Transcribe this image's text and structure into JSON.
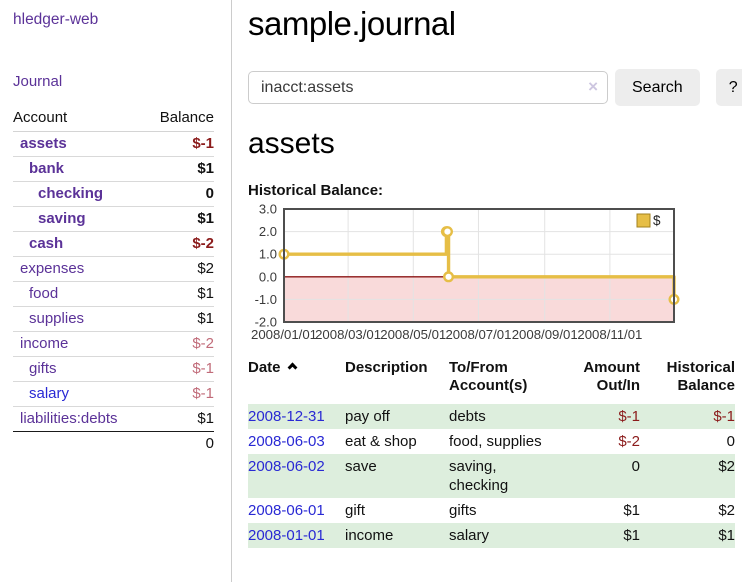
{
  "app": {
    "title": "hledger-web",
    "nav_journal": "Journal"
  },
  "sidebar": {
    "accounts_header": {
      "account": "Account",
      "balance": "Balance"
    },
    "accounts": [
      {
        "name": "assets",
        "indent": 1,
        "balance": "$-1",
        "bold": true,
        "negative": "strong"
      },
      {
        "name": "bank",
        "indent": 2,
        "balance": "$1",
        "bold": true,
        "negative": "none"
      },
      {
        "name": "checking",
        "indent": 3,
        "balance": "0",
        "bold": true,
        "negative": "none"
      },
      {
        "name": "saving",
        "indent": 3,
        "balance": "$1",
        "bold": true,
        "negative": "none"
      },
      {
        "name": "cash",
        "indent": 2,
        "balance": "$-2",
        "bold": true,
        "negative": "strong"
      },
      {
        "name": "expenses",
        "indent": 1,
        "balance": "$2",
        "bold": false,
        "negative": "none"
      },
      {
        "name": "food",
        "indent": 2,
        "balance": "$1",
        "bold": false,
        "negative": "none"
      },
      {
        "name": "supplies",
        "indent": 2,
        "balance": "$1",
        "bold": false,
        "negative": "none"
      },
      {
        "name": "income",
        "indent": 1,
        "balance": "$-2",
        "bold": false,
        "negative": "soft"
      },
      {
        "name": "gifts",
        "indent": 2,
        "balance": "$-1",
        "bold": false,
        "negative": "soft"
      },
      {
        "name": "salary",
        "indent": 2,
        "balance": "$-1",
        "bold": false,
        "negative": "soft",
        "link_color": "blue"
      },
      {
        "name": "liabilities:debts",
        "indent": 1,
        "balance": "$1",
        "bold": false,
        "negative": "none"
      }
    ],
    "total": "0"
  },
  "header": {
    "title": "sample.journal"
  },
  "search": {
    "value": "inacct:assets",
    "clear_icon": "×",
    "button": "Search",
    "help_button": "?"
  },
  "account_page": {
    "heading": "assets",
    "chart_label": "Historical Balance:"
  },
  "chart_data": {
    "type": "line",
    "step": true,
    "title": "Historical Balance",
    "legend": [
      {
        "label": "$",
        "color": "#e6be46"
      }
    ],
    "legend_position": "top-right",
    "grid": true,
    "x_ticks": [
      "2008/01/01",
      "2008/03/01",
      "2008/05/01",
      "2008/07/01",
      "2008/09/01",
      "2008/11/01"
    ],
    "x_range": [
      "2008-01-01",
      "2008-12-31"
    ],
    "y_ticks": [
      3.0,
      2.0,
      1.0,
      0.0,
      -1.0,
      -2.0
    ],
    "ylim": [
      -2,
      3
    ],
    "series": [
      {
        "name": "$",
        "color": "#e6be46",
        "points": [
          [
            "2008-01-01",
            1
          ],
          [
            "2008-06-01",
            2
          ],
          [
            "2008-06-02",
            2
          ],
          [
            "2008-06-03",
            0
          ],
          [
            "2008-12-31",
            -1
          ]
        ]
      }
    ],
    "negative_region_fill": "#f9dada",
    "zero_line_color": "#8b1515"
  },
  "transactions": {
    "columns": [
      {
        "line1": "Date",
        "line2": "",
        "sortable": true
      },
      {
        "line1": "Description",
        "line2": ""
      },
      {
        "line1": "To/From",
        "line2": "Account(s)"
      },
      {
        "line1": "Amount",
        "line2": "Out/In"
      },
      {
        "line1": "Historical",
        "line2": "Balance"
      }
    ],
    "rows": [
      {
        "date": "2008-12-31",
        "description": "pay off",
        "accounts": "debts",
        "amount": "$-1",
        "amount_neg": true,
        "balance": "$-1",
        "balance_neg": true
      },
      {
        "date": "2008-06-03",
        "description": "eat & shop",
        "accounts": "food, supplies",
        "amount": "$-2",
        "amount_neg": true,
        "balance": "0",
        "balance_neg": false
      },
      {
        "date": "2008-06-02",
        "description": "save",
        "accounts": "saving, checking",
        "amount": "0",
        "amount_neg": false,
        "balance": "$2",
        "balance_neg": false
      },
      {
        "date": "2008-06-01",
        "description": "gift",
        "accounts": "gifts",
        "amount": "$1",
        "amount_neg": false,
        "balance": "$2",
        "balance_neg": false
      },
      {
        "date": "2008-01-01",
        "description": "income",
        "accounts": "salary",
        "amount": "$1",
        "amount_neg": false,
        "balance": "$1",
        "balance_neg": false
      }
    ]
  }
}
